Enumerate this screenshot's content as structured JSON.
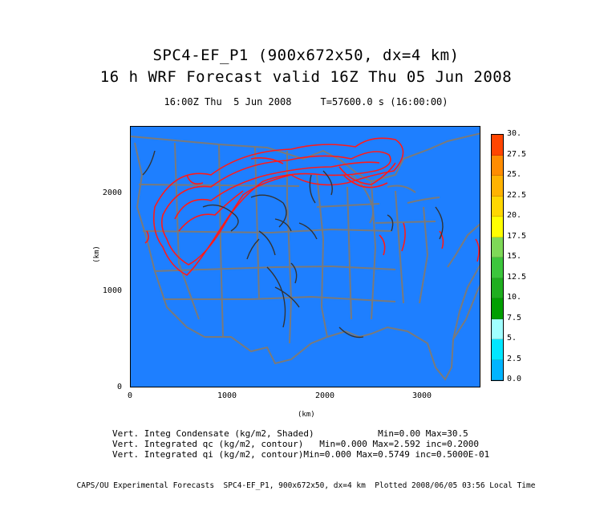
{
  "header": {
    "title_line1": "SPC4-EF_P1 (900x672x50, dx=4 km)",
    "title_line2": "16 h WRF Forecast valid 16Z Thu 05 Jun 2008",
    "subtitle": "16:00Z Thu  5 Jun 2008     T=57600.0 s (16:00:00)"
  },
  "map": {
    "xlabel": "(km)",
    "ylabel": "(km)",
    "x_ticks": [
      "0",
      "1000",
      "2000",
      "3000"
    ],
    "y_ticks": [
      "2000",
      "1000",
      "0"
    ],
    "background_color": "#1e7fff",
    "boundary_color": "#7a7a7a",
    "contour_qc_color": "#ff1a1a",
    "contour_qi_color": "#333333"
  },
  "colorbar": {
    "labels": [
      "30.",
      "27.5",
      "25.",
      "22.5",
      "20.",
      "17.5",
      "15.",
      "12.5",
      "10.",
      "7.5",
      "5.",
      "2.5",
      "0.0"
    ],
    "colors": [
      "#ff4500",
      "#ff8c00",
      "#ffb300",
      "#ffd700",
      "#ffff00",
      "#7ed957",
      "#3cc63c",
      "#1fae1f",
      "#009f00",
      "#a0ffff",
      "#00e6ff",
      "#00b4ff",
      "#1e7fff"
    ]
  },
  "stats": {
    "line1": "Vert. Integ Condensate (kg/m2, Shaded)            Min=0.00 Max=30.5",
    "line2": "Vert. Integrated qc (kg/m2, contour)   Min=0.000 Max=2.592 inc=0.2000",
    "line3": "Vert. Integrated qi (kg/m2, contour)Min=0.000 Max=0.5749 inc=0.5000E-01"
  },
  "footer": "CAPS/OU Experimental Forecasts  SPC4-EF_P1, 900x672x50, dx=4 km  Plotted 2008/06/05 03:56 Local Time"
}
